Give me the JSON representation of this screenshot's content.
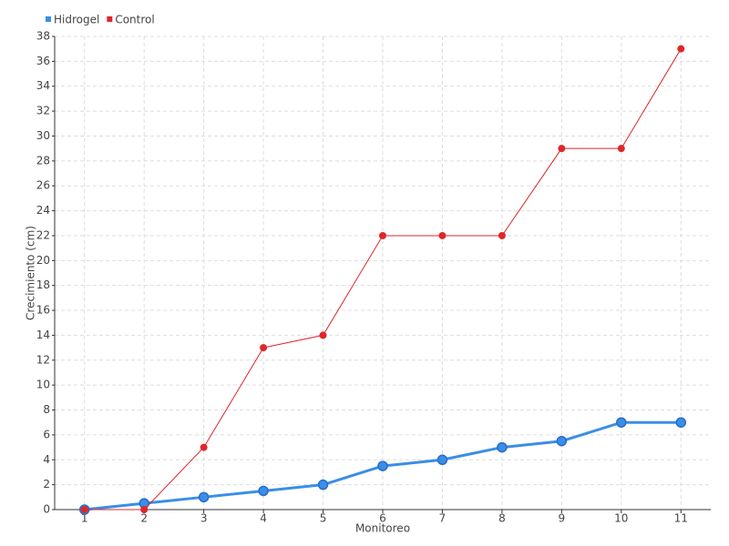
{
  "chart_data": {
    "type": "line",
    "x_label": "Monitoreo",
    "y_label": "Crecimiento (cm)",
    "categories": [
      "1",
      "2",
      "3",
      "4",
      "5",
      "6",
      "7",
      "8",
      "9",
      "10",
      "11"
    ],
    "series": [
      {
        "name": "Hidrogel",
        "color": "#3a8ee6",
        "values": [
          0,
          0.5,
          1,
          1.5,
          2,
          3.5,
          4,
          5,
          5.5,
          7,
          7
        ]
      },
      {
        "name": "Control",
        "color": "#e0262b",
        "values": [
          0,
          0,
          5,
          13,
          14,
          22,
          22,
          22,
          29,
          29,
          37
        ]
      }
    ],
    "ylim": [
      0,
      38
    ],
    "yticks": [
      0,
      2,
      4,
      6,
      8,
      10,
      12,
      14,
      16,
      18,
      20,
      22,
      24,
      26,
      28,
      30,
      32,
      34,
      36,
      38
    ],
    "grid": true,
    "legend": "top-left"
  }
}
